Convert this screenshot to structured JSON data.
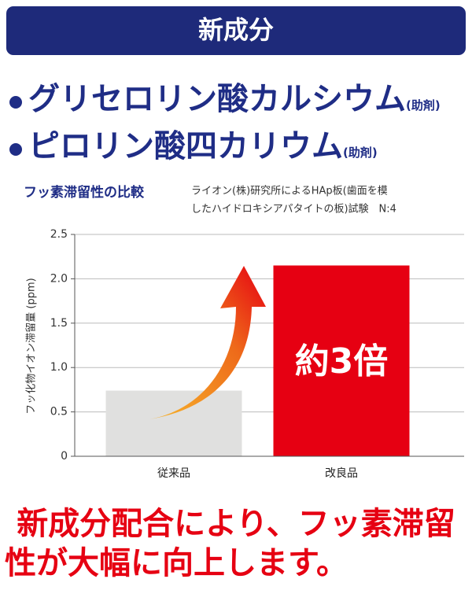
{
  "header": {
    "title": "新成分"
  },
  "ingredients": [
    {
      "name": "グリセロリン酸カルシウム",
      "note": "(助剤)"
    },
    {
      "name": "ピロリン酸四カリウム",
      "note": "(助剤)"
    }
  ],
  "chart_data": {
    "type": "bar",
    "title": "フッ素滞留性の比較",
    "subtitle": [
      "ライオン(株)研究所によるHAp板(歯面を模",
      "したハイドロキシアパタイトの板)試験　N:4"
    ],
    "y_label": "フッ化物イオン滞留量 (ppm)",
    "categories": [
      "従来品",
      "改良品"
    ],
    "values": [
      0.74,
      2.15
    ],
    "colors": [
      "#e0e0df",
      "#e60012"
    ],
    "annotation": "約3倍",
    "ylim": [
      0,
      2.5
    ],
    "yticks": [
      0,
      0.5,
      {
        "value": 1.0,
        "label": "1.0"
      },
      1.5,
      {
        "value": 2.0,
        "label": "2.0"
      },
      2.5
    ]
  },
  "footer": {
    "lines": [
      "新成分配合により、フッ素滞留",
      "性が大幅に向上します。"
    ]
  }
}
